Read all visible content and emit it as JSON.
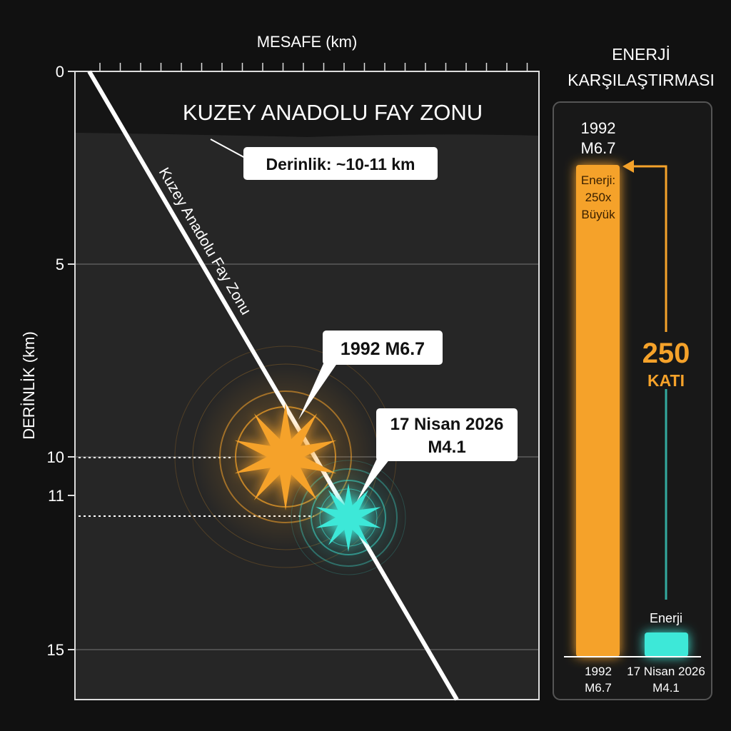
{
  "section": {
    "x_axis_title": "MESAFE (km)",
    "y_axis_title": "DERİNLİK (km)",
    "y_ticks": [
      0,
      5,
      10,
      11,
      15
    ],
    "y_range": [
      0,
      16.3
    ],
    "band_title": "KUZEY ANADOLU FAY ZONU",
    "depth_callout": "Derinlik: ~10-11 km",
    "fault_label": "Kuzey Anadolu Fay Zonu",
    "events": [
      {
        "label": "1992 M6.7",
        "depth_km": 10,
        "color": "#f5a22a"
      },
      {
        "label_line1": "17 Nisan 2026",
        "label_line2": "M4.1",
        "depth_km": 11,
        "color": "#3ee8d8"
      }
    ]
  },
  "energy": {
    "title_line1": "ENERJİ",
    "title_line2": "KARŞILAŞTIRMASI",
    "top_label_line1": "1992",
    "top_label_line2": "M6.7",
    "bar1_text": [
      "Enerji:",
      "250x",
      "Büyük"
    ],
    "bar2_text": "Enerji",
    "ratio_value": "250",
    "ratio_unit": "KATI",
    "cat1_line1": "1992",
    "cat1_line2": "M6.7",
    "cat2_line1": "17 Nisan 2026",
    "cat2_line2": "M4.1",
    "bar_values_relative": [
      250,
      1
    ],
    "colors": {
      "bar1": "#f5a22a",
      "bar2": "#3ee8d8"
    }
  }
}
